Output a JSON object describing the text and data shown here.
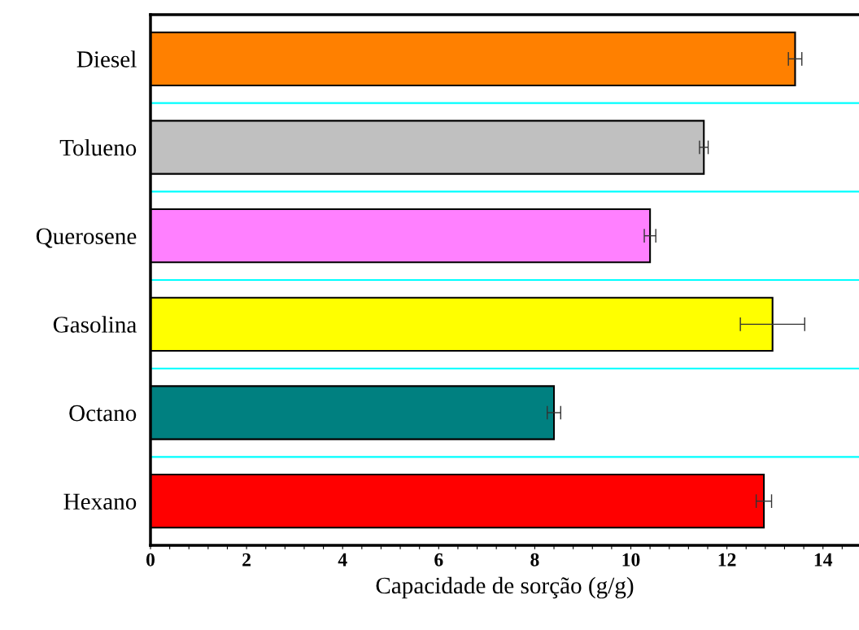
{
  "chart_data": {
    "type": "bar",
    "orientation": "horizontal",
    "xlabel": "Capacidade de sorção (g/g)",
    "categories": [
      "Diesel",
      "Tolueno",
      "Querosene",
      "Gasolina",
      "Octano",
      "Hexano"
    ],
    "values": [
      13.42,
      11.52,
      10.4,
      12.95,
      8.4,
      12.77
    ],
    "errors": [
      0.14,
      0.09,
      0.12,
      0.67,
      0.14,
      0.16
    ],
    "colors": [
      "#ff8000",
      "#c0c0c0",
      "#ff80ff",
      "#ffff00",
      "#008080",
      "#ff0000"
    ],
    "xlim": [
      0,
      14.75
    ],
    "xticks": [
      0,
      {
        "value": 0.4,
        "label": null
      },
      {
        "value": 0.8,
        "label": null
      },
      {
        "value": 1.2,
        "label": null
      },
      {
        "value": 1.6,
        "label": null
      },
      2,
      {
        "value": 2.4,
        "label": null
      },
      {
        "value": 2.8,
        "label": null
      },
      {
        "value": 3.2,
        "label": null
      },
      {
        "value": 3.6,
        "label": null
      },
      4,
      {
        "value": 4.4,
        "label": null
      },
      {
        "value": 4.8,
        "label": null
      },
      {
        "value": 5.2,
        "label": null
      },
      {
        "value": 5.6,
        "label": null
      },
      6,
      {
        "value": 6.4,
        "label": null
      },
      {
        "value": 6.8,
        "label": null
      },
      {
        "value": 7.2,
        "label": null
      },
      {
        "value": 7.6,
        "label": null
      },
      8,
      {
        "value": 8.4,
        "label": null
      },
      {
        "value": 8.8,
        "label": null
      },
      {
        "value": 9.2,
        "label": null
      },
      {
        "value": 9.6,
        "label": null
      },
      10,
      {
        "value": 10.4,
        "label": null
      },
      {
        "value": 10.8,
        "label": null
      },
      {
        "value": 11.2,
        "label": null
      },
      {
        "value": 11.6,
        "label": null
      },
      12,
      {
        "value": 12.4,
        "label": null
      },
      {
        "value": 12.8,
        "label": null
      },
      {
        "value": 13.2,
        "label": null
      },
      {
        "value": 13.6,
        "label": null
      },
      14,
      {
        "value": 14.4,
        "label": null
      }
    ],
    "grid": "y"
  }
}
